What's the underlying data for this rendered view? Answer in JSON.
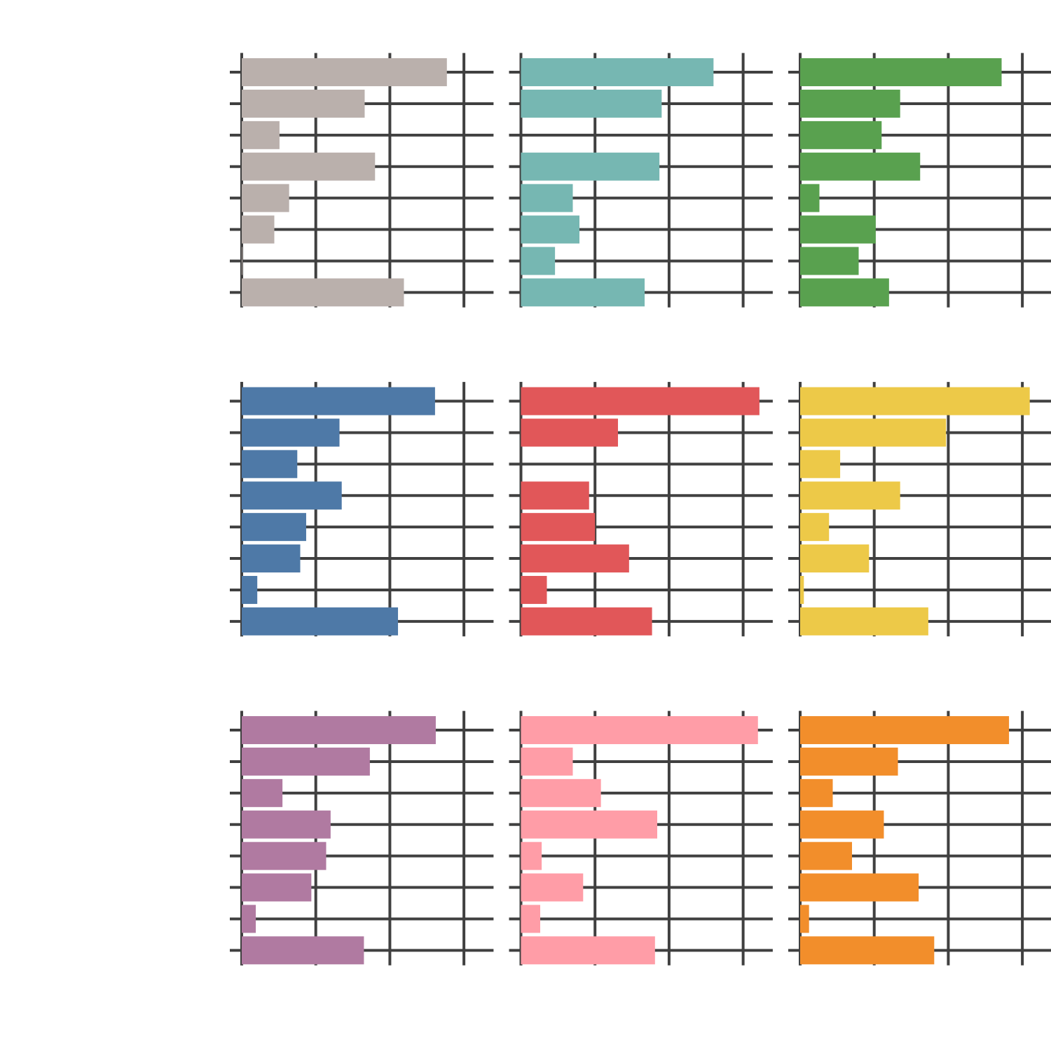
{
  "chart_data": [
    {
      "type": "bar",
      "orientation": "horizontal",
      "color": "#bab0ac",
      "grid": true,
      "categories": [
        null,
        null,
        null,
        null,
        null,
        null,
        null,
        null
      ],
      "values": [
        2.77,
        1.66,
        0.51,
        1.8,
        0.64,
        0.44,
        0.01,
        2.19
      ],
      "xlim": [
        0,
        3.4
      ],
      "xticks": [
        0,
        1,
        2,
        3
      ]
    },
    {
      "type": "bar",
      "orientation": "horizontal",
      "color": "#76b7b2",
      "grid": true,
      "categories": [
        null,
        null,
        null,
        null,
        null,
        null,
        null,
        null
      ],
      "values": [
        2.6,
        1.9,
        0,
        1.87,
        0.7,
        0.79,
        0.46,
        1.67
      ],
      "xlim": [
        0,
        3.4
      ],
      "xticks": [
        0,
        1,
        2,
        3
      ]
    },
    {
      "type": "bar",
      "orientation": "horizontal",
      "color": "#59a14f",
      "grid": true,
      "categories": [
        null,
        null,
        null,
        null,
        null,
        null,
        null,
        null
      ],
      "values": [
        2.72,
        1.35,
        1.1,
        1.62,
        0.26,
        1.02,
        0.79,
        1.2
      ],
      "xlim": [
        0,
        3.4
      ],
      "xticks": [
        0,
        1,
        2,
        3
      ]
    },
    {
      "type": "bar",
      "orientation": "horizontal",
      "color": "#4e79a7",
      "grid": true,
      "categories": [
        null,
        null,
        null,
        null,
        null,
        null,
        null,
        null
      ],
      "values": [
        2.61,
        1.32,
        0.75,
        1.35,
        0.87,
        0.79,
        0.21,
        2.11
      ],
      "xlim": [
        0,
        3.4
      ],
      "xticks": [
        0,
        1,
        2,
        3
      ]
    },
    {
      "type": "bar",
      "orientation": "horizontal",
      "color": "#e15759",
      "grid": true,
      "categories": [
        null,
        null,
        null,
        null,
        null,
        null,
        null,
        null
      ],
      "values": [
        3.22,
        1.31,
        0,
        0.92,
        1.0,
        1.46,
        0.35,
        1.77
      ],
      "xlim": [
        0,
        3.4
      ],
      "xticks": [
        0,
        1,
        2,
        3
      ]
    },
    {
      "type": "bar",
      "orientation": "horizontal",
      "color": "#edc948",
      "grid": true,
      "categories": [
        null,
        null,
        null,
        null,
        null,
        null,
        null,
        null
      ],
      "values": [
        3.1,
        1.97,
        0.54,
        1.35,
        0.39,
        0.93,
        0.05,
        1.73
      ],
      "xlim": [
        0,
        3.4
      ],
      "xticks": [
        0,
        1,
        2,
        3
      ]
    },
    {
      "type": "bar",
      "orientation": "horizontal",
      "color": "#b07aa1",
      "grid": true,
      "categories": [
        null,
        null,
        null,
        null,
        null,
        null,
        null,
        null
      ],
      "values": [
        2.62,
        1.73,
        0.55,
        1.2,
        1.14,
        0.94,
        0.19,
        1.65
      ],
      "xlim": [
        0,
        3.4
      ],
      "xticks": [
        0,
        1,
        2,
        3
      ]
    },
    {
      "type": "bar",
      "orientation": "horizontal",
      "color": "#ff9da7",
      "grid": true,
      "categories": [
        null,
        null,
        null,
        null,
        null,
        null,
        null,
        null
      ],
      "values": [
        3.2,
        0.7,
        1.08,
        1.84,
        0.28,
        0.84,
        0.26,
        1.81
      ],
      "xlim": [
        0,
        3.4
      ],
      "xticks": [
        0,
        1,
        2,
        3
      ]
    },
    {
      "type": "bar",
      "orientation": "horizontal",
      "color": "#f28e2b",
      "grid": true,
      "categories": [
        null,
        null,
        null,
        null,
        null,
        null,
        null,
        null
      ],
      "values": [
        2.82,
        1.32,
        0.44,
        1.13,
        0.7,
        1.6,
        0.12,
        1.81
      ],
      "xlim": [
        0,
        3.4
      ],
      "xticks": [
        0,
        1,
        2,
        3
      ]
    }
  ]
}
